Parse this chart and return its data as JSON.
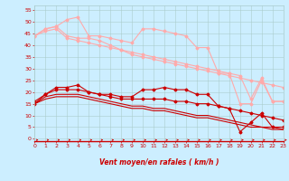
{
  "x": [
    0,
    1,
    2,
    3,
    4,
    5,
    6,
    7,
    8,
    9,
    10,
    11,
    12,
    13,
    14,
    15,
    16,
    17,
    18,
    19,
    20,
    21,
    22,
    23
  ],
  "background_color": "#cceeff",
  "grid_color": "#aacccc",
  "xlabel": "Vent moyen/en rafales ( km/h )",
  "xlabel_color": "#cc0000",
  "tick_color": "#cc0000",
  "yticks": [
    0,
    5,
    10,
    15,
    20,
    25,
    30,
    35,
    40,
    45,
    50,
    55
  ],
  "ylim": [
    -1,
    57
  ],
  "xlim": [
    0,
    23
  ],
  "lines": [
    {
      "color": "#ffaaaa",
      "marker": "D",
      "markersize": 1.5,
      "linewidth": 0.8,
      "y": [
        44,
        47,
        48,
        51,
        52,
        44,
        44,
        43,
        42,
        41,
        47,
        47,
        46,
        45,
        44,
        39,
        39,
        28,
        28,
        15,
        15,
        25,
        16,
        16
      ]
    },
    {
      "color": "#ffaaaa",
      "marker": "D",
      "markersize": 1.5,
      "linewidth": 0.8,
      "y": [
        44,
        47,
        48,
        44,
        43,
        43,
        42,
        40,
        38,
        36,
        35,
        34,
        33,
        32,
        31,
        30,
        29,
        28,
        27,
        26,
        25,
        24,
        23,
        22
      ]
    },
    {
      "color": "#ffaaaa",
      "marker": "D",
      "markersize": 1.5,
      "linewidth": 0.8,
      "y": [
        44,
        46,
        47,
        43,
        42,
        41,
        40,
        39,
        38,
        37,
        36,
        35,
        34,
        33,
        32,
        31,
        30,
        29,
        28,
        27,
        17,
        26,
        16,
        16
      ]
    },
    {
      "color": "#cc0000",
      "marker": "D",
      "markersize": 1.5,
      "linewidth": 0.8,
      "y": [
        16,
        19,
        22,
        22,
        23,
        20,
        19,
        19,
        18,
        18,
        21,
        21,
        22,
        21,
        21,
        19,
        19,
        14,
        13,
        3,
        7,
        11,
        5,
        5
      ]
    },
    {
      "color": "#cc0000",
      "marker": "D",
      "markersize": 1.5,
      "linewidth": 0.8,
      "y": [
        15,
        19,
        21,
        21,
        21,
        20,
        19,
        18,
        17,
        17,
        17,
        17,
        17,
        16,
        16,
        15,
        15,
        14,
        13,
        12,
        11,
        10,
        9,
        8
      ]
    },
    {
      "color": "#cc0000",
      "marker": null,
      "markersize": 0,
      "linewidth": 0.8,
      "y": [
        15,
        18,
        19,
        19,
        19,
        18,
        17,
        16,
        15,
        14,
        14,
        13,
        13,
        12,
        11,
        10,
        10,
        9,
        8,
        7,
        6,
        5,
        5,
        4
      ]
    },
    {
      "color": "#cc0000",
      "marker": null,
      "markersize": 0,
      "linewidth": 0.8,
      "y": [
        15,
        17,
        18,
        18,
        18,
        17,
        16,
        15,
        14,
        13,
        13,
        12,
        12,
        11,
        10,
        9,
        9,
        8,
        7,
        6,
        5,
        5,
        4,
        4
      ]
    }
  ]
}
